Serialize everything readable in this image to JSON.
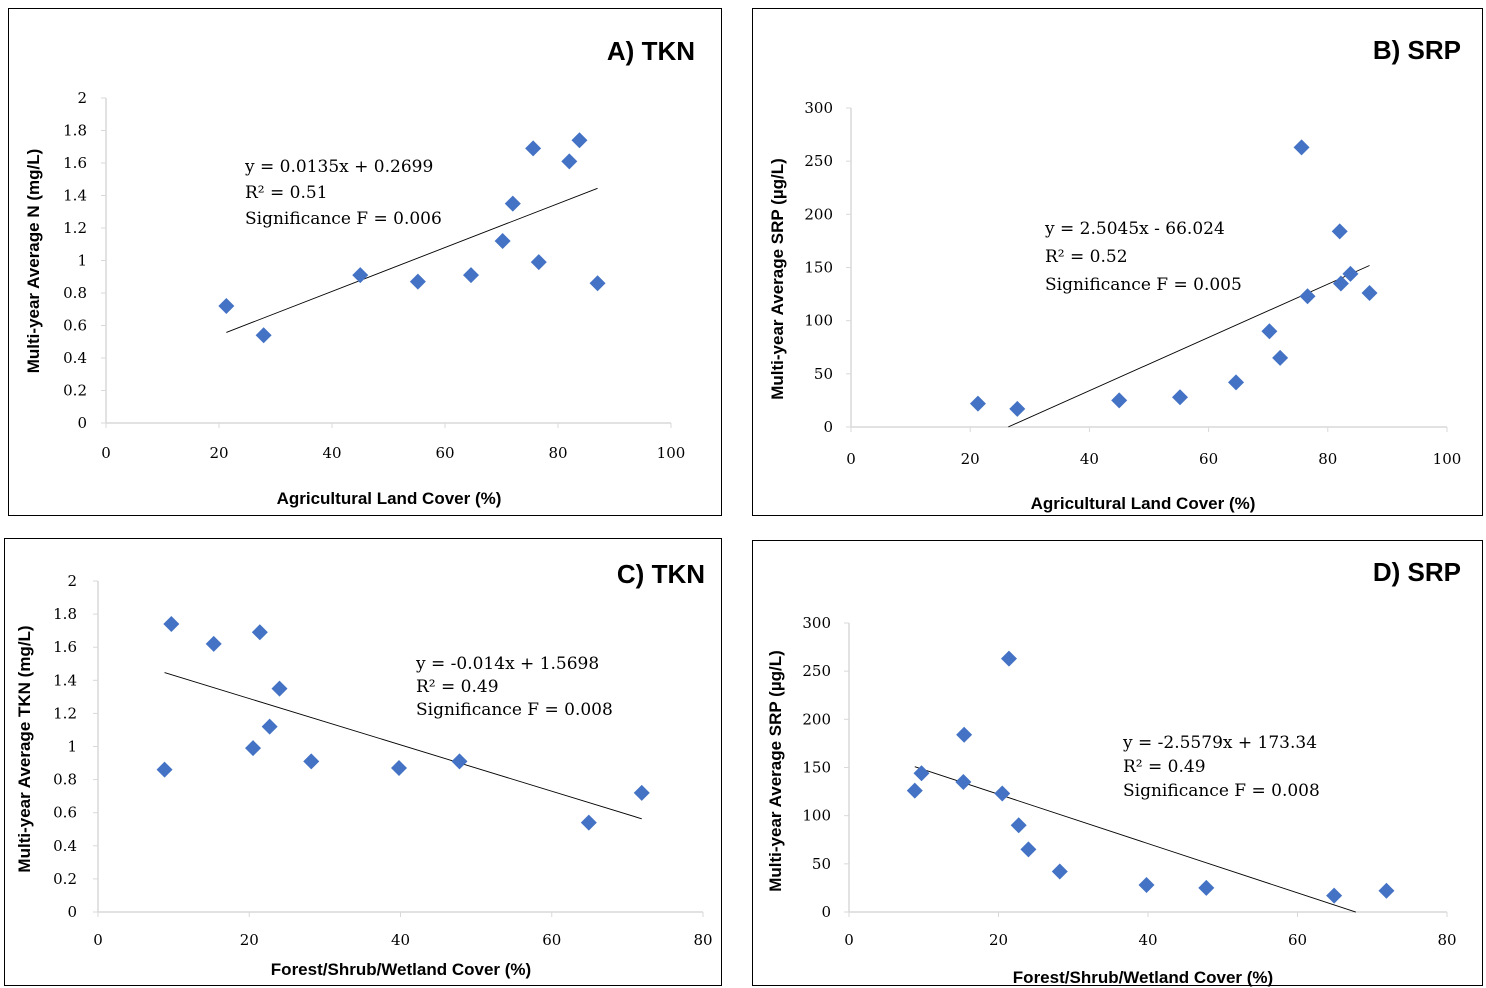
{
  "colors": {
    "marker": "#4472c4",
    "trendline": "#000000",
    "axis": "#d9d9d9",
    "frame": "#000000"
  },
  "chart_data": [
    {
      "type": "scatter",
      "title": "A) TKN",
      "xlabel": "Agricultural Land Cover (%)",
      "ylabel": "Multi-year Average N (mg/L)",
      "xlim": [
        0,
        100
      ],
      "ylim": [
        0,
        2
      ],
      "x_ticks": [
        "0",
        "20",
        "40",
        "60",
        "80",
        "100"
      ],
      "y_ticks": [
        "0",
        "0.2",
        "0.4",
        "0.6",
        "0.8",
        "1",
        "1.2",
        "1.4",
        "1.6",
        "1.8",
        "2"
      ],
      "grid": false,
      "points": [
        {
          "x": 21.3,
          "y": 0.72
        },
        {
          "x": 27.9,
          "y": 0.54
        },
        {
          "x": 45.0,
          "y": 0.91
        },
        {
          "x": 55.2,
          "y": 0.87
        },
        {
          "x": 64.6,
          "y": 0.91
        },
        {
          "x": 70.2,
          "y": 1.12
        },
        {
          "x": 72.0,
          "y": 1.35
        },
        {
          "x": 75.6,
          "y": 1.69
        },
        {
          "x": 76.6,
          "y": 0.99
        },
        {
          "x": 82.0,
          "y": 1.61
        },
        {
          "x": 83.8,
          "y": 1.74
        },
        {
          "x": 87.0,
          "y": 0.86
        }
      ],
      "trendline": {
        "slope": 0.0135,
        "intercept": 0.2699,
        "x_range": [
          21.3,
          87.0
        ]
      },
      "annotation": [
        "y = 0.0135x + 0.2699",
        "R² = 0.51",
        "Significance F = 0.006"
      ]
    },
    {
      "type": "scatter",
      "title": "B) SRP",
      "xlabel": "Agricultural Land Cover (%)",
      "ylabel": "Multi-year Average SRP (µg/L)",
      "xlim": [
        0,
        100
      ],
      "ylim": [
        0,
        300
      ],
      "x_ticks": [
        "0",
        "20",
        "40",
        "60",
        "80",
        "100"
      ],
      "y_ticks": [
        "0",
        "50",
        "100",
        "150",
        "200",
        "250",
        "300"
      ],
      "grid": false,
      "points": [
        {
          "x": 21.3,
          "y": 22
        },
        {
          "x": 27.9,
          "y": 17
        },
        {
          "x": 45.0,
          "y": 25
        },
        {
          "x": 55.2,
          "y": 28
        },
        {
          "x": 64.6,
          "y": 42
        },
        {
          "x": 70.2,
          "y": 90
        },
        {
          "x": 72.0,
          "y": 65
        },
        {
          "x": 75.6,
          "y": 263
        },
        {
          "x": 76.6,
          "y": 123
        },
        {
          "x": 82.0,
          "y": 184
        },
        {
          "x": 82.2,
          "y": 135
        },
        {
          "x": 83.8,
          "y": 144
        },
        {
          "x": 87.0,
          "y": 126
        }
      ],
      "trendline": {
        "slope": 2.5045,
        "intercept": -66.024,
        "x_range": [
          26.4,
          87.0
        ]
      },
      "annotation": [
        "y = 2.5045x - 66.024",
        "R² = 0.52",
        "Significance F = 0.005"
      ]
    },
    {
      "type": "scatter",
      "title": "C) TKN",
      "xlabel": "Forest/Shrub/Wetland Cover (%)",
      "ylabel": "Multi-year Average TKN (mg/L)",
      "xlim": [
        0,
        80
      ],
      "ylim": [
        0,
        2
      ],
      "x_ticks": [
        "0",
        "20",
        "40",
        "60",
        "80"
      ],
      "y_ticks": [
        "0",
        "0.2",
        "0.4",
        "0.6",
        "0.8",
        "1",
        "1.2",
        "1.4",
        "1.6",
        "1.8",
        "2"
      ],
      "grid": false,
      "points": [
        {
          "x": 8.8,
          "y": 0.86
        },
        {
          "x": 9.7,
          "y": 1.74
        },
        {
          "x": 15.3,
          "y": 1.62
        },
        {
          "x": 20.5,
          "y": 0.99
        },
        {
          "x": 21.4,
          "y": 1.69
        },
        {
          "x": 22.7,
          "y": 1.12
        },
        {
          "x": 24.0,
          "y": 1.35
        },
        {
          "x": 28.2,
          "y": 0.91
        },
        {
          "x": 39.8,
          "y": 0.87
        },
        {
          "x": 47.8,
          "y": 0.91
        },
        {
          "x": 64.9,
          "y": 0.54
        },
        {
          "x": 71.9,
          "y": 0.72
        }
      ],
      "trendline": {
        "slope": -0.014,
        "intercept": 1.5698,
        "x_range": [
          8.8,
          71.9
        ]
      },
      "annotation": [
        "y = -0.014x + 1.5698",
        "R² = 0.49",
        "Significance F = 0.008"
      ]
    },
    {
      "type": "scatter",
      "title": "D) SRP",
      "xlabel": "Forest/Shrub/Wetland Cover (%)",
      "ylabel": "Multi-year Average SRP (µg/L)",
      "xlim": [
        0,
        80
      ],
      "ylim": [
        0,
        300
      ],
      "x_ticks": [
        "0",
        "20",
        "40",
        "60",
        "80"
      ],
      "y_ticks": [
        "0",
        "50",
        "100",
        "150",
        "200",
        "250",
        "300"
      ],
      "grid": false,
      "points": [
        {
          "x": 8.8,
          "y": 126
        },
        {
          "x": 9.7,
          "y": 144
        },
        {
          "x": 15.3,
          "y": 135
        },
        {
          "x": 15.4,
          "y": 184
        },
        {
          "x": 20.5,
          "y": 123
        },
        {
          "x": 21.4,
          "y": 263
        },
        {
          "x": 22.7,
          "y": 90
        },
        {
          "x": 24.0,
          "y": 65
        },
        {
          "x": 28.2,
          "y": 42
        },
        {
          "x": 39.8,
          "y": 28
        },
        {
          "x": 47.8,
          "y": 25
        },
        {
          "x": 64.9,
          "y": 17
        },
        {
          "x": 71.9,
          "y": 22
        }
      ],
      "trendline": {
        "slope": -2.5579,
        "intercept": 173.34,
        "x_range": [
          8.8,
          67.8
        ]
      },
      "annotation": [
        "y = -2.5579x + 173.34",
        "R² = 0.49",
        "Significance F = 0.008"
      ]
    }
  ]
}
